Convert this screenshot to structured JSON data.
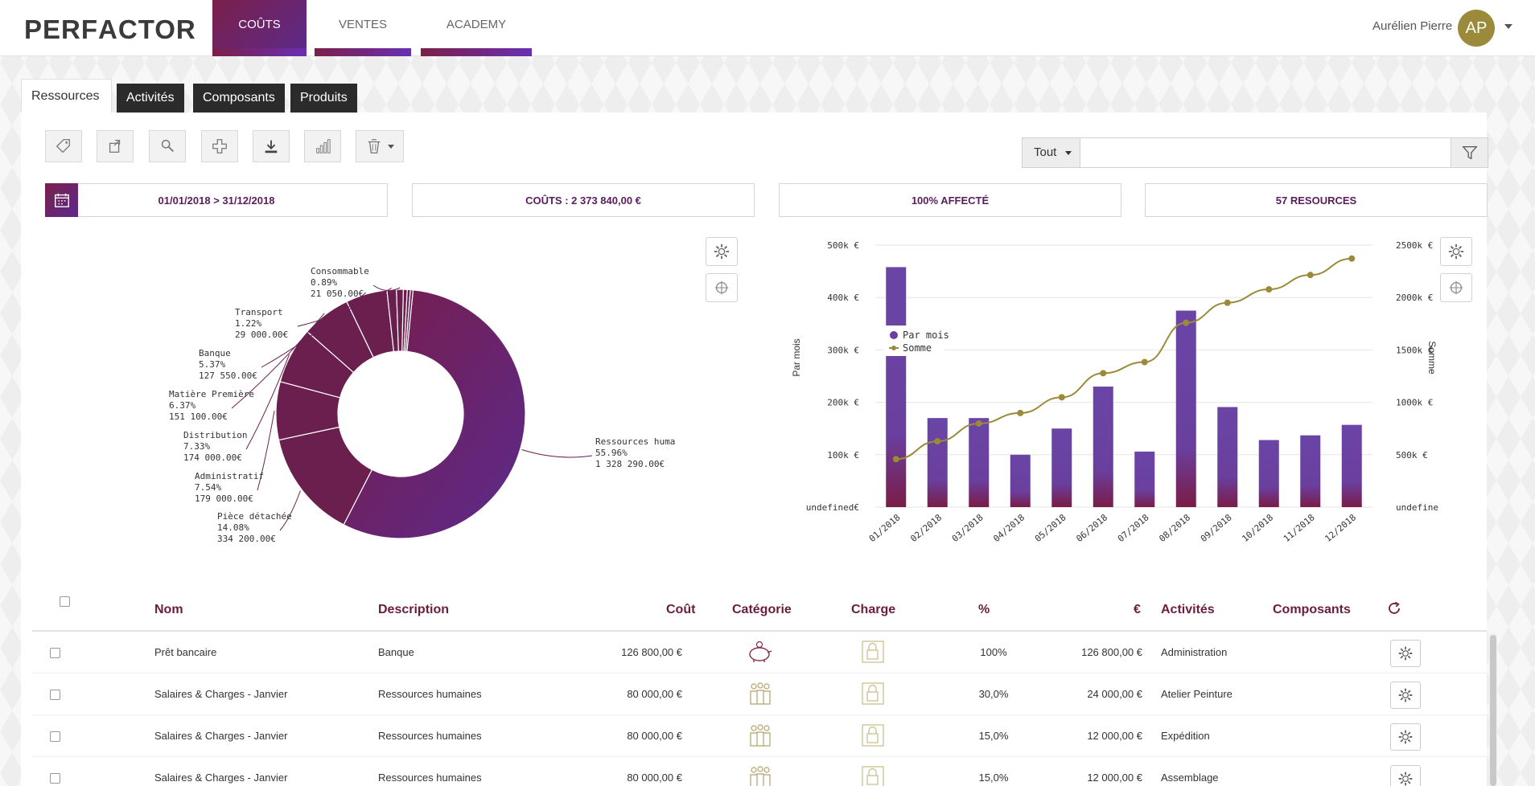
{
  "app": {
    "logo": "PERFACTOR"
  },
  "nav": {
    "tabs": [
      "COÛTS",
      "VENTES",
      "ACADEMY"
    ]
  },
  "user": {
    "name": "Aurélien Pierre",
    "initials": "AP"
  },
  "subtabs": [
    "Ressources",
    "Activités",
    "Composants",
    "Produits"
  ],
  "toolbar": {
    "icons": [
      "tag-icon",
      "export-icon",
      "search-icon",
      "plus-icon",
      "download-icon",
      "chart-icon",
      "trash-icon"
    ]
  },
  "filter": {
    "selected": "Tout",
    "value": ""
  },
  "stats": {
    "period": "01/01/2018 > 31/12/2018",
    "costs": "COÛTS : 2 373 840,00 €",
    "affected": "100% AFFECTÉ",
    "resources": "57 RESOURCES"
  },
  "chart_data": [
    {
      "type": "pie",
      "variant": "donut",
      "slices": [
        {
          "label": "Ressources humaines",
          "pct": "55.96%",
          "amount": "1 328 290.00€",
          "value": 55.96
        },
        {
          "label": "Pièce détachée",
          "pct": "14.08%",
          "amount": "334 200.00€",
          "value": 14.08
        },
        {
          "label": "Administratif",
          "pct": "7.54%",
          "amount": "179 000.00€",
          "value": 7.54
        },
        {
          "label": "Distribution",
          "pct": "7.33%",
          "amount": "174 000.00€",
          "value": 7.33
        },
        {
          "label": "Matière Première",
          "pct": "6.37%",
          "amount": "151 100.00€",
          "value": 6.37
        },
        {
          "label": "Banque",
          "pct": "5.37%",
          "amount": "127 550.00€",
          "value": 5.37
        },
        {
          "label": "Transport",
          "pct": "1.22%",
          "amount": "29 000.00€",
          "value": 1.22
        },
        {
          "label": "Consommable",
          "pct": "0.89%",
          "amount": "21 050.00€",
          "value": 0.89
        },
        {
          "label": "",
          "pct": "",
          "amount": "",
          "value": 0.5
        },
        {
          "label": "",
          "pct": "",
          "amount": "",
          "value": 0.4
        },
        {
          "label": "",
          "pct": "",
          "amount": "",
          "value": 0.34
        }
      ]
    },
    {
      "type": "bar",
      "categories": [
        "01/2018",
        "02/2018",
        "03/2018",
        "04/2018",
        "05/2018",
        "06/2018",
        "07/2018",
        "08/2018",
        "09/2018",
        "10/2018",
        "11/2018",
        "12/2018"
      ],
      "series": [
        {
          "name": "Par mois",
          "type": "bar",
          "axis": "left",
          "values": [
            458,
            170,
            170,
            100,
            150,
            230,
            106,
            375,
            191,
            128,
            137,
            157
          ]
        },
        {
          "name": "Somme",
          "type": "line",
          "axis": "right",
          "values": [
            458,
            628,
            798,
            898,
            1048,
            1278,
            1384,
            1759,
            1950,
            2078,
            2215,
            2372
          ]
        }
      ],
      "ylabel": "Par mois",
      "y2label": "Somme",
      "yticks": [
        "undefined€",
        "100k €",
        "200k €",
        "300k €",
        "400k €",
        "500k €"
      ],
      "y2ticks": [
        "undefined€",
        "500k €",
        "1000k €",
        "1500k €",
        "2000k €",
        "2500k €"
      ],
      "ylim": [
        0,
        500
      ],
      "y2lim": [
        0,
        2500
      ],
      "legend": "top-left",
      "colors": {
        "bar": "#6a3fa0",
        "line": "#9a8a3a"
      }
    }
  ],
  "table": {
    "columns": [
      "Nom",
      "Description",
      "Coût",
      "Catégorie",
      "Charge",
      "%",
      "€",
      "Activités",
      "Composants"
    ],
    "rows": [
      {
        "nom": "Prêt bancaire",
        "description": "Banque",
        "cout": "126 800,00 €",
        "categorie": "piggy-bank-icon",
        "pct": "100%",
        "eur": "126 800,00 €",
        "activite": "Administration"
      },
      {
        "nom": "Salaires & Charges - Janvier",
        "description": "Ressources humaines",
        "cout": "80 000,00 €",
        "categorie": "people-icon",
        "pct": "30,0%",
        "eur": "24 000,00 €",
        "activite": "Atelier Peinture"
      },
      {
        "nom": "Salaires & Charges - Janvier",
        "description": "Ressources humaines",
        "cout": "80 000,00 €",
        "categorie": "people-icon",
        "pct": "15,0%",
        "eur": "12 000,00 €",
        "activite": "Expédition"
      },
      {
        "nom": "Salaires & Charges - Janvier",
        "description": "Ressources humaines",
        "cout": "80 000,00 €",
        "categorie": "people-icon",
        "pct": "15,0%",
        "eur": "12 000,00 €",
        "activite": "Assemblage"
      }
    ]
  }
}
